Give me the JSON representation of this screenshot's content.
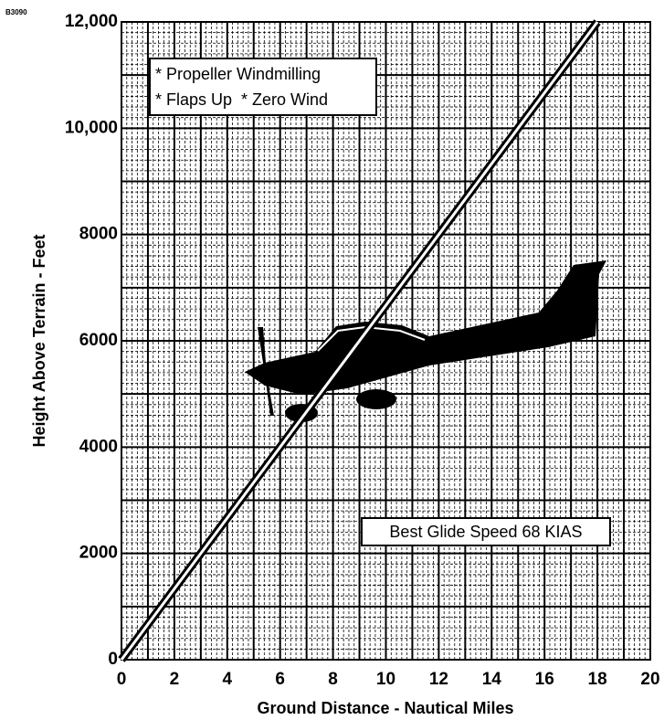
{
  "chart_data": {
    "type": "line",
    "figure_id": "B3090",
    "xlabel": "Ground Distance - Nautical Miles",
    "ylabel": "Height Above Terrain - Feet",
    "annotations": [
      "* Propeller Windmilling",
      "* Flaps Up  * Zero Wind",
      "Best Glide Speed 68 KIAS"
    ],
    "x": [
      0,
      18
    ],
    "series": [
      {
        "color": "#000000",
        "values": [
          0,
          12000
        ]
      }
    ],
    "xlim": [
      0,
      20
    ],
    "xticks": [
      0,
      2,
      4,
      6,
      8,
      10,
      12,
      14,
      16,
      18,
      20
    ],
    "ylim": [
      0,
      12000
    ],
    "yticks": [
      0,
      2000,
      4000,
      6000,
      8000,
      {
        "value": 10000,
        "label": "10,000"
      },
      {
        "value": 12000,
        "label": "12,000"
      }
    ],
    "grid": true
  }
}
